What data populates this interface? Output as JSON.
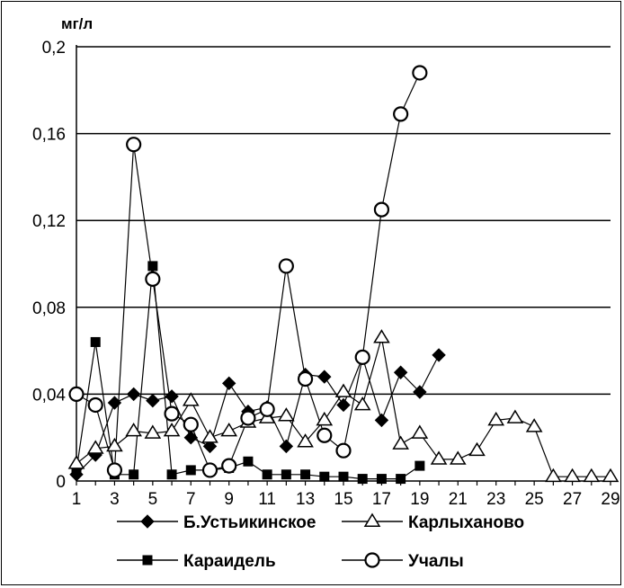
{
  "chart_data": {
    "type": "line",
    "ylabel": "мг/л",
    "ylim": [
      0,
      0.2
    ],
    "y_ticks": [
      "0",
      "0,04",
      "0,08",
      "0,12",
      "0,16",
      "0,2"
    ],
    "x_range": [
      1,
      29
    ],
    "x_ticks": [
      "1",
      "3",
      "5",
      "7",
      "9",
      "11",
      "13",
      "15",
      "17",
      "19",
      "21",
      "23",
      "25",
      "27",
      "29"
    ],
    "grid": "horizontal",
    "legend_position": "bottom",
    "series": [
      {
        "name": "Б.Устьикинское",
        "marker": "filled-diamond",
        "color": "#000000",
        "points": [
          [
            1,
            0.003
          ],
          [
            2,
            0.012
          ],
          [
            3,
            0.036
          ],
          [
            4,
            0.04
          ],
          [
            5,
            0.037
          ],
          [
            6,
            0.039
          ],
          [
            7,
            0.02
          ],
          [
            8,
            0.016
          ],
          [
            9,
            0.045
          ],
          [
            10,
            0.032
          ],
          [
            11,
            0.034
          ],
          [
            12,
            0.016
          ],
          [
            13,
            0.049
          ],
          [
            14,
            0.048
          ],
          [
            15,
            0.035
          ],
          [
            16,
            0.057
          ],
          [
            17,
            0.028
          ],
          [
            18,
            0.05
          ],
          [
            19,
            0.041
          ],
          [
            20,
            0.058
          ]
        ]
      },
      {
        "name": "Карлыханово",
        "marker": "open-triangle",
        "color": "#000000",
        "points": [
          [
            1,
            0.008
          ],
          [
            2,
            0.015
          ],
          [
            3,
            0.016
          ],
          [
            4,
            0.023
          ],
          [
            5,
            0.022
          ],
          [
            6,
            0.023
          ],
          [
            7,
            0.037
          ],
          [
            8,
            0.02
          ],
          [
            9,
            0.023
          ],
          [
            10,
            0.027
          ],
          [
            11,
            0.029
          ],
          [
            12,
            0.03
          ],
          [
            13,
            0.018
          ],
          [
            14,
            0.028
          ],
          [
            15,
            0.041
          ],
          [
            16,
            0.035
          ],
          [
            17,
            0.066
          ],
          [
            18,
            0.017
          ],
          [
            19,
            0.022
          ],
          [
            20,
            0.01
          ],
          [
            21,
            0.01
          ],
          [
            22,
            0.014
          ],
          [
            23,
            0.028
          ],
          [
            24,
            0.029
          ],
          [
            25,
            0.025
          ],
          [
            26,
            0.002
          ],
          [
            27,
            0.002
          ],
          [
            28,
            0.002
          ],
          [
            29,
            0.002
          ]
        ]
      },
      {
        "name": "Караидель",
        "marker": "filled-square",
        "color": "#000000",
        "points": [
          [
            1,
            0.005
          ],
          [
            2,
            0.064
          ],
          [
            3,
            0.003
          ],
          [
            4,
            0.003
          ],
          [
            5,
            0.099
          ],
          [
            6,
            0.003
          ],
          [
            7,
            0.005
          ],
          [
            8,
            0.005
          ],
          [
            9,
            0.006
          ],
          [
            10,
            0.009
          ],
          [
            11,
            0.003
          ],
          [
            12,
            0.003
          ],
          [
            13,
            0.003
          ],
          [
            14,
            0.002
          ],
          [
            15,
            0.002
          ],
          [
            16,
            0.001
          ],
          [
            17,
            0.001
          ],
          [
            18,
            0.001
          ],
          [
            19,
            0.007
          ]
        ]
      },
      {
        "name": "Учалы",
        "marker": "open-circle",
        "color": "#000000",
        "points": [
          [
            1,
            0.04
          ],
          [
            2,
            0.035
          ],
          [
            3,
            0.005
          ],
          [
            4,
            0.155
          ],
          [
            5,
            0.093
          ],
          [
            6,
            0.031
          ],
          [
            7,
            0.026
          ],
          [
            8,
            0.005
          ],
          [
            9,
            0.007
          ],
          [
            10,
            0.029
          ],
          [
            11,
            0.033
          ],
          [
            12,
            0.099
          ],
          [
            13,
            0.047
          ],
          [
            14,
            0.021
          ],
          [
            15,
            0.014
          ],
          [
            16,
            0.057
          ],
          [
            17,
            0.125
          ],
          [
            18,
            0.169
          ],
          [
            19,
            0.188
          ]
        ]
      }
    ]
  }
}
